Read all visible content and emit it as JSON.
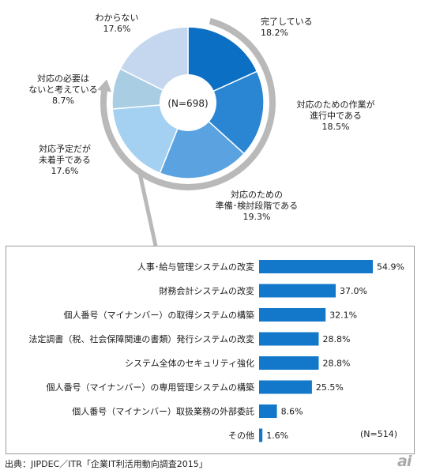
{
  "chart_data": [
    {
      "type": "pie",
      "center_label": "(N=698)",
      "slices": [
        {
          "label": "完了している",
          "value": 18.2,
          "value_label": "18.2%",
          "color": "#0b6fc4"
        },
        {
          "label": "対応のための作業が\n進行中である",
          "value": 18.5,
          "value_label": "18.5%",
          "color": "#2a86d3"
        },
        {
          "label": "対応のための\n準備･検討段階である",
          "value": 19.3,
          "value_label": "19.3%",
          "color": "#5aa3e0"
        },
        {
          "label": "対応予定だが\n未着手である",
          "value": 17.6,
          "value_label": "17.6%",
          "color": "#a4d0f1"
        },
        {
          "label": "対応の必要は\nないと考えている",
          "value": 8.7,
          "value_label": "8.7%",
          "color": "#a9cde3"
        },
        {
          "label": "わからない",
          "value": 17.6,
          "value_label": "17.6%",
          "color": "#c5d7ee"
        }
      ]
    },
    {
      "type": "bar",
      "orientation": "horizontal",
      "note": "(N=514)",
      "categories": [
        "人事･給与管理システムの改変",
        "財務会計システムの改変",
        "個人番号（マイナンバー）の取得システムの構築",
        "法定調書（税、社会保障関連の書類）発行システムの改変",
        "システム全体のセキュリティ強化",
        "個人番号（マイナンバー）の専用管理システムの構築",
        "個人番号（マイナンバー）取扱業務の外部委託",
        "その他"
      ],
      "values": [
        54.9,
        37.0,
        32.1,
        28.8,
        28.8,
        25.5,
        8.6,
        1.6
      ],
      "value_labels": [
        "54.9%",
        "37.0%",
        "32.1%",
        "28.8%",
        "28.8%",
        "25.5%",
        "8.6%",
        "1.6%"
      ],
      "bar_color": "#1378c9",
      "xlim": [
        0,
        54.9
      ]
    }
  ],
  "source": "出典：JIPDEC／ITR「企業IT利活用動向調査2015」",
  "logo": "ai"
}
